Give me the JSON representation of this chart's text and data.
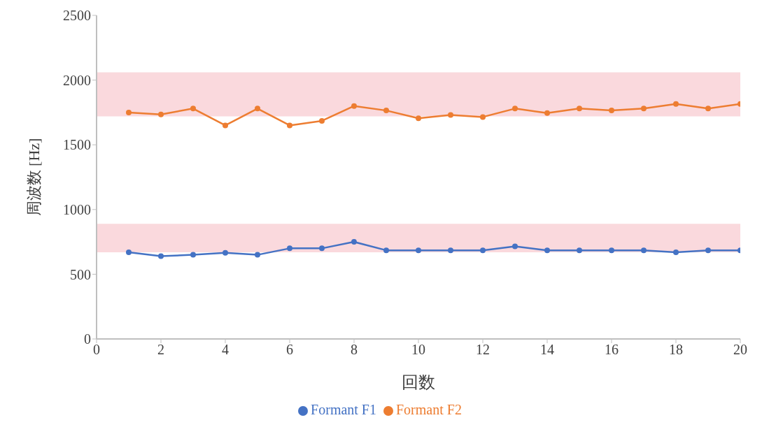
{
  "chart_data": {
    "type": "line",
    "xlabel": "回数",
    "ylabel": "周波数 [Hz]",
    "x": [
      1,
      2,
      3,
      4,
      5,
      6,
      7,
      8,
      9,
      10,
      11,
      12,
      13,
      14,
      15,
      16,
      17,
      18,
      19,
      20
    ],
    "series": [
      {
        "name": "Formant F1",
        "color": "#4472c4",
        "values": [
          670,
          640,
          650,
          665,
          650,
          700,
          700,
          750,
          685,
          685,
          685,
          685,
          715,
          685,
          685,
          685,
          685,
          670,
          685,
          685
        ]
      },
      {
        "name": "Formant F2",
        "color": "#ed7d31",
        "values": [
          1750,
          1735,
          1780,
          1650,
          1780,
          1650,
          1685,
          1800,
          1765,
          1705,
          1730,
          1715,
          1780,
          1745,
          1780,
          1765,
          1780,
          1815,
          1780,
          1815
        ]
      }
    ],
    "bands": [
      {
        "axis": "y",
        "from": 1720,
        "to": 2060,
        "color": "#fad9dd"
      },
      {
        "axis": "y",
        "from": 670,
        "to": 890,
        "color": "#fad9dd"
      }
    ],
    "xlim": [
      0,
      20
    ],
    "xticks": [
      0,
      2,
      4,
      6,
      8,
      10,
      12,
      14,
      16,
      18,
      20
    ],
    "ylim": [
      0,
      2500
    ],
    "yticks": [
      0,
      500,
      1000,
      1500,
      2000,
      2500
    ],
    "grid": false,
    "legend": "bottom",
    "marker": "circle",
    "line_style": "solid"
  }
}
